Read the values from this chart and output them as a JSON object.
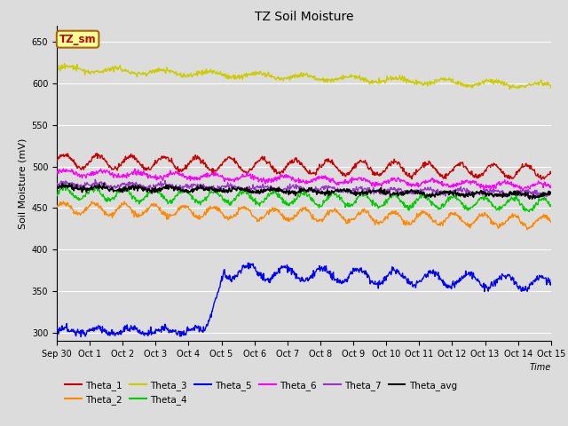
{
  "title": "TZ Soil Moisture",
  "xlabel": "Time",
  "ylabel": "Soil Moisture (mV)",
  "ylim": [
    290,
    670
  ],
  "yticks": [
    300,
    350,
    400,
    450,
    500,
    550,
    600,
    650
  ],
  "figsize": [
    6.4,
    4.8
  ],
  "dpi": 100,
  "bg_color": "#dcdcdc",
  "x_tick_labels": [
    "Sep 30",
    "Oct 1",
    "Oct 2",
    "Oct 3",
    "Oct 4",
    "Oct 5",
    "Oct 6",
    "Oct 7",
    "Oct 8",
    "Oct 9",
    "Oct 10",
    "Oct 11",
    "Oct 12",
    "Oct 13",
    "Oct 14",
    "Oct 15"
  ],
  "series_colors": {
    "Theta_1": "#cc0000",
    "Theta_2": "#ff8800",
    "Theta_3": "#cccc00",
    "Theta_4": "#00cc00",
    "Theta_5": "#0000ff",
    "Theta_6": "#ff00ff",
    "Theta_7": "#9933cc",
    "Theta_avg": "#000000"
  },
  "legend_box": {
    "label": "TZ_sm",
    "facecolor": "#ffff99",
    "edgecolor": "#aa6600",
    "textcolor": "#cc0000"
  }
}
